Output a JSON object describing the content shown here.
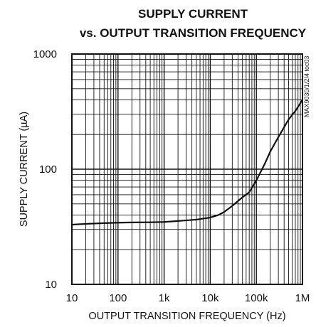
{
  "chart_data": {
    "type": "line",
    "title_lines": [
      "SUPPLY CURRENT",
      "vs. OUTPUT TRANSITION FREQUENCY"
    ],
    "xlabel": "OUTPUT TRANSITION FREQUENCY (Hz)",
    "ylabel": "SUPPLY CURRENT (µA)",
    "x_scale": "log",
    "y_scale": "log",
    "xlim": [
      10,
      1000000
    ],
    "ylim": [
      10,
      1000
    ],
    "x_tick_labels": [
      "10",
      "100",
      "1k",
      "10k",
      "100k",
      "1M"
    ],
    "y_tick_labels": [
      "10",
      "100",
      "1000"
    ],
    "grid": true,
    "side_note": "MAX9030/1/2/4 toc03",
    "series": [
      {
        "x": [
          10,
          20,
          50,
          100,
          200,
          500,
          1000,
          2000,
          5000,
          10000,
          15000,
          20000,
          30000,
          50000,
          70000,
          100000,
          150000,
          200000,
          300000,
          500000,
          700000,
          1000000
        ],
        "y": [
          33,
          33.5,
          34,
          34.3,
          34.5,
          34.6,
          34.8,
          35.5,
          36.5,
          38,
          40,
          42.5,
          48,
          57,
          63,
          80,
          110,
          142,
          190,
          270,
          320,
          400
        ]
      }
    ]
  }
}
